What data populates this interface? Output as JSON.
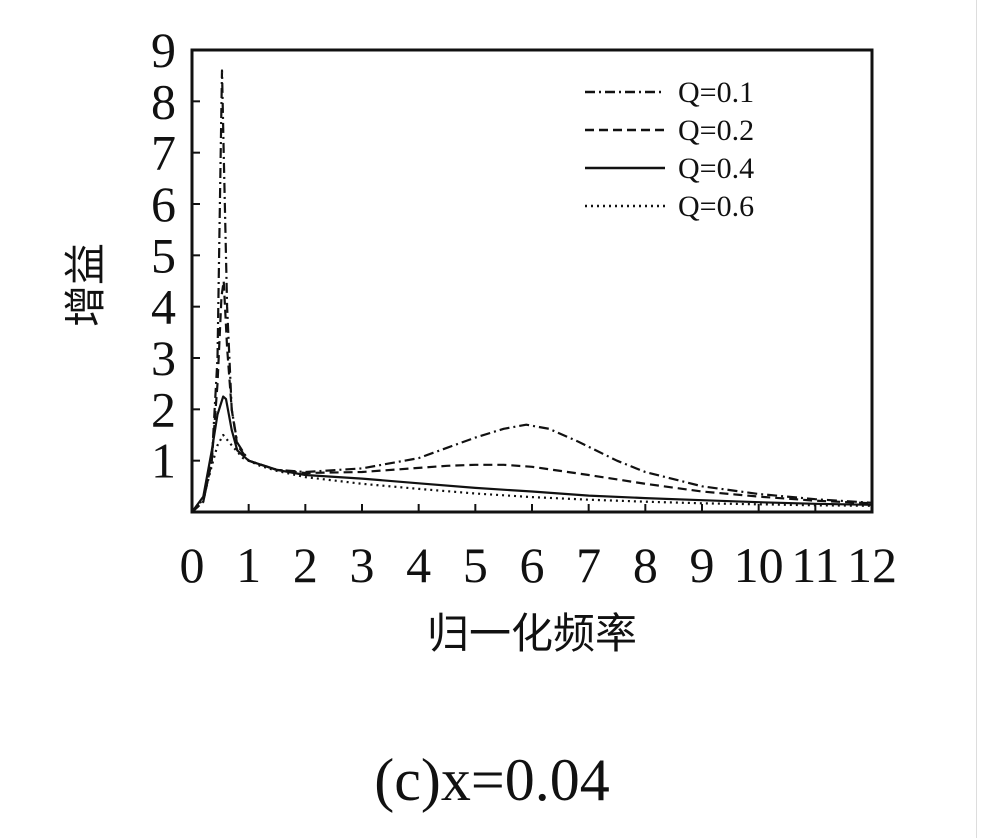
{
  "chart_data": {
    "type": "line",
    "xlabel": "归一化频率",
    "ylabel": "增益",
    "xlim": [
      0,
      12
    ],
    "ylim": [
      0,
      9
    ],
    "x_ticks": [
      "0",
      "1",
      "2",
      "3",
      "4",
      "5",
      "6",
      "7",
      "8",
      "9",
      "10",
      "11",
      "12"
    ],
    "y_ticks": [
      "1",
      "2",
      "3",
      "4",
      "5",
      "6",
      "7",
      "8",
      "9"
    ],
    "legend_position": "top-right",
    "series": [
      {
        "name": "Q=0.1",
        "style": "dashdot",
        "points": [
          [
            0,
            0
          ],
          [
            0.2,
            0.2
          ],
          [
            0.35,
            1.0
          ],
          [
            0.45,
            3.0
          ],
          [
            0.5,
            6.5
          ],
          [
            0.53,
            8.6
          ],
          [
            0.56,
            7.0
          ],
          [
            0.62,
            4.0
          ],
          [
            0.7,
            2.0
          ],
          [
            0.8,
            1.35
          ],
          [
            1.0,
            1.0
          ],
          [
            1.5,
            0.82
          ],
          [
            2,
            0.78
          ],
          [
            3,
            0.85
          ],
          [
            4,
            1.05
          ],
          [
            4.5,
            1.25
          ],
          [
            5,
            1.45
          ],
          [
            5.5,
            1.62
          ],
          [
            5.9,
            1.7
          ],
          [
            6.3,
            1.62
          ],
          [
            6.8,
            1.38
          ],
          [
            7.5,
            1.0
          ],
          [
            8,
            0.78
          ],
          [
            9,
            0.5
          ],
          [
            10,
            0.35
          ],
          [
            11,
            0.25
          ],
          [
            12,
            0.18
          ]
        ]
      },
      {
        "name": "Q=0.2",
        "style": "dashed",
        "points": [
          [
            0,
            0
          ],
          [
            0.2,
            0.2
          ],
          [
            0.35,
            1.0
          ],
          [
            0.45,
            2.5
          ],
          [
            0.52,
            4.2
          ],
          [
            0.56,
            4.5
          ],
          [
            0.62,
            3.2
          ],
          [
            0.7,
            2.0
          ],
          [
            0.8,
            1.3
          ],
          [
            1.0,
            1.0
          ],
          [
            1.5,
            0.82
          ],
          [
            2,
            0.76
          ],
          [
            3,
            0.78
          ],
          [
            4,
            0.86
          ],
          [
            4.5,
            0.9
          ],
          [
            5,
            0.92
          ],
          [
            5.5,
            0.92
          ],
          [
            6,
            0.88
          ],
          [
            6.5,
            0.8
          ],
          [
            7,
            0.72
          ],
          [
            8,
            0.55
          ],
          [
            9,
            0.4
          ],
          [
            10,
            0.3
          ],
          [
            11,
            0.22
          ],
          [
            12,
            0.17
          ]
        ]
      },
      {
        "name": "Q=0.4",
        "style": "solid",
        "points": [
          [
            0,
            0
          ],
          [
            0.2,
            0.3
          ],
          [
            0.35,
            1.2
          ],
          [
            0.45,
            1.9
          ],
          [
            0.55,
            2.25
          ],
          [
            0.6,
            2.2
          ],
          [
            0.7,
            1.6
          ],
          [
            0.8,
            1.2
          ],
          [
            1.0,
            1.0
          ],
          [
            1.5,
            0.82
          ],
          [
            2,
            0.72
          ],
          [
            3,
            0.65
          ],
          [
            4,
            0.56
          ],
          [
            5,
            0.47
          ],
          [
            6,
            0.4
          ],
          [
            7,
            0.32
          ],
          [
            8,
            0.27
          ],
          [
            9,
            0.23
          ],
          [
            10,
            0.19
          ],
          [
            11,
            0.16
          ],
          [
            12,
            0.14
          ]
        ]
      },
      {
        "name": "Q=0.6",
        "style": "dotted",
        "points": [
          [
            0,
            0
          ],
          [
            0.2,
            0.25
          ],
          [
            0.35,
            0.9
          ],
          [
            0.45,
            1.3
          ],
          [
            0.55,
            1.5
          ],
          [
            0.7,
            1.3
          ],
          [
            0.9,
            1.05
          ],
          [
            1.2,
            0.9
          ],
          [
            1.5,
            0.8
          ],
          [
            2,
            0.68
          ],
          [
            3,
            0.55
          ],
          [
            4,
            0.45
          ],
          [
            5,
            0.36
          ],
          [
            6,
            0.29
          ],
          [
            7,
            0.24
          ],
          [
            8,
            0.2
          ],
          [
            9,
            0.17
          ],
          [
            10,
            0.15
          ],
          [
            11,
            0.13
          ],
          [
            12,
            0.12
          ]
        ]
      }
    ],
    "caption": "(c)x=0.04"
  }
}
